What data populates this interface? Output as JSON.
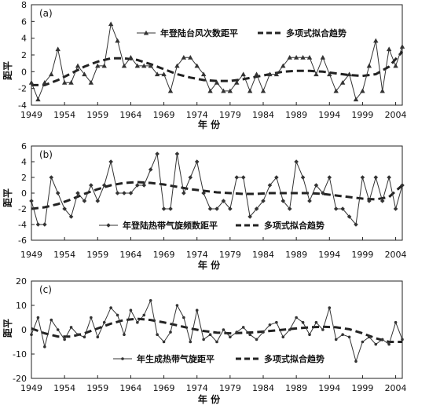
{
  "colors": {
    "series": "#333333",
    "trend": "#222222",
    "frame": "#222222"
  },
  "chart_data": [
    {
      "type": "line",
      "panel_label": "(a)",
      "title": "",
      "xlabel": "年  份",
      "ylabel": "距平",
      "xlim": [
        1949,
        2005
      ],
      "ylim": [
        -4,
        8
      ],
      "xticks": [
        1949,
        1954,
        1959,
        1964,
        1969,
        1974,
        1979,
        1984,
        1989,
        1994,
        1999,
        2004
      ],
      "yticks": [
        -4,
        -2,
        0,
        2,
        4,
        6,
        8
      ],
      "marker": "triangle",
      "legend_position": "top-right",
      "series": [
        {
          "name": "年登陆台风次数距平",
          "x": [
            1949,
            1950,
            1951,
            1952,
            1953,
            1954,
            1955,
            1956,
            1957,
            1958,
            1959,
            1960,
            1961,
            1962,
            1963,
            1964,
            1965,
            1966,
            1967,
            1968,
            1969,
            1970,
            1971,
            1972,
            1973,
            1974,
            1975,
            1976,
            1977,
            1978,
            1979,
            1980,
            1981,
            1982,
            1983,
            1984,
            1985,
            1986,
            1987,
            1988,
            1989,
            1990,
            1991,
            1992,
            1993,
            1994,
            1995,
            1996,
            1997,
            1998,
            1999,
            2000,
            2001,
            2002,
            2003,
            2004,
            2005
          ],
          "values": [
            -1.3,
            -3.3,
            -1.3,
            -0.3,
            2.7,
            -1.3,
            -1.3,
            0.7,
            -0.3,
            -1.3,
            0.7,
            0.7,
            5.7,
            3.7,
            0.7,
            1.7,
            0.7,
            0.7,
            0.7,
            -0.3,
            -0.3,
            -2.3,
            0.7,
            1.7,
            1.7,
            0.7,
            -0.3,
            -2.3,
            -1.3,
            -2.3,
            -2.3,
            -1.3,
            -0.3,
            -2.3,
            -0.3,
            -2.3,
            -0.3,
            -0.3,
            0.7,
            1.7,
            1.7,
            1.7,
            1.7,
            -0.3,
            1.7,
            -0.3,
            -2.3,
            -1.3,
            -0.3,
            -3.3,
            -2.3,
            0.7,
            3.7,
            -2.3,
            2.7,
            0.7,
            3.0
          ]
        },
        {
          "name": "多项式拟合趋势",
          "x": [
            1949,
            1951,
            1953,
            1955,
            1957,
            1959,
            1961,
            1963,
            1965,
            1967,
            1969,
            1971,
            1973,
            1975,
            1977,
            1979,
            1981,
            1983,
            1985,
            1987,
            1989,
            1991,
            1993,
            1995,
            1997,
            1999,
            2001,
            2003,
            2005
          ],
          "values": [
            -1.6,
            -1.6,
            -1.0,
            -0.2,
            0.6,
            1.2,
            1.6,
            1.6,
            1.4,
            0.9,
            0.3,
            -0.3,
            -0.7,
            -1.0,
            -1.1,
            -1.1,
            -0.9,
            -0.6,
            -0.3,
            0.0,
            0.1,
            0.1,
            0.0,
            -0.2,
            -0.4,
            -0.5,
            -0.3,
            0.6,
            2.4
          ]
        }
      ]
    },
    {
      "type": "line",
      "panel_label": "(b)",
      "title": "",
      "xlabel": "年  份",
      "ylabel": "距平",
      "xlim": [
        1949,
        2005
      ],
      "ylim": [
        -6,
        6
      ],
      "xticks": [
        1949,
        1954,
        1959,
        1964,
        1969,
        1974,
        1979,
        1984,
        1989,
        1994,
        1999,
        2004
      ],
      "yticks": [
        -6,
        -4,
        -2,
        0,
        2,
        4,
        6
      ],
      "marker": "diamond",
      "legend_position": "bottom-center",
      "series": [
        {
          "name": "年登陆热带气旋频数距平",
          "x": [
            1949,
            1950,
            1951,
            1952,
            1953,
            1954,
            1955,
            1956,
            1957,
            1958,
            1959,
            1960,
            1961,
            1962,
            1963,
            1964,
            1965,
            1966,
            1967,
            1968,
            1969,
            1970,
            1971,
            1972,
            1973,
            1974,
            1975,
            1976,
            1977,
            1978,
            1979,
            1980,
            1981,
            1982,
            1983,
            1984,
            1985,
            1986,
            1987,
            1988,
            1989,
            1990,
            1991,
            1992,
            1993,
            1994,
            1995,
            1996,
            1997,
            1998,
            1999,
            2000,
            2001,
            2002,
            2003,
            2004,
            2005
          ],
          "values": [
            -1,
            -4,
            -4,
            2,
            0,
            -2,
            -3,
            0,
            -1,
            1,
            -1,
            1,
            4,
            0,
            0,
            0,
            1,
            1,
            3,
            5,
            -2,
            -2,
            5,
            0,
            2,
            4,
            0,
            -2,
            -2,
            -1,
            -2,
            2,
            2,
            -3,
            -2,
            -1,
            1,
            2,
            -1,
            -2,
            4,
            2,
            -1,
            1,
            0,
            2,
            -2,
            -2,
            -3,
            -4,
            2,
            -1,
            2,
            -1,
            2,
            -2,
            1
          ]
        },
        {
          "name": "多项式拟合趋势",
          "x": [
            1949,
            1951,
            1953,
            1955,
            1957,
            1959,
            1961,
            1963,
            1965,
            1967,
            1969,
            1971,
            1973,
            1975,
            1977,
            1979,
            1981,
            1983,
            1985,
            1987,
            1989,
            1991,
            1993,
            1995,
            1997,
            1999,
            2001,
            2003,
            2005
          ],
          "values": [
            -2.0,
            -1.8,
            -1.4,
            -0.8,
            -0.1,
            0.5,
            1.0,
            1.3,
            1.4,
            1.3,
            1.1,
            0.8,
            0.5,
            0.3,
            0.1,
            0.0,
            -0.1,
            -0.1,
            0.0,
            0.0,
            0.0,
            0.0,
            -0.1,
            -0.3,
            -0.5,
            -0.7,
            -0.8,
            -0.5,
            1.0
          ]
        }
      ]
    },
    {
      "type": "line",
      "panel_label": "(c)",
      "title": "",
      "xlabel": "年  份",
      "ylabel": "距平",
      "xlim": [
        1949,
        2005
      ],
      "ylim": [
        -20,
        20
      ],
      "xticks": [
        1949,
        1954,
        1959,
        1964,
        1969,
        1974,
        1979,
        1984,
        1989,
        1994,
        1999,
        2004
      ],
      "yticks": [
        -20,
        -10,
        0,
        10,
        20
      ],
      "marker": "dot",
      "legend_position": "bottom-center",
      "series": [
        {
          "name": "年生成热带气旋距平",
          "x": [
            1949,
            1950,
            1951,
            1952,
            1953,
            1954,
            1955,
            1956,
            1957,
            1958,
            1959,
            1960,
            1961,
            1962,
            1963,
            1964,
            1965,
            1966,
            1967,
            1968,
            1969,
            1970,
            1971,
            1972,
            1973,
            1974,
            1975,
            1976,
            1977,
            1978,
            1979,
            1980,
            1981,
            1982,
            1983,
            1984,
            1985,
            1986,
            1987,
            1988,
            1989,
            1990,
            1991,
            1992,
            1993,
            1994,
            1995,
            1996,
            1997,
            1998,
            1999,
            2000,
            2001,
            2002,
            2003,
            2004,
            2005
          ],
          "values": [
            -2,
            5,
            -7,
            4,
            0,
            -4,
            1,
            -2,
            -3,
            5,
            -3,
            3,
            9,
            6,
            -2,
            8,
            3,
            6,
            12,
            -2,
            -5,
            -1,
            10,
            5,
            -5,
            8,
            -4,
            -2,
            -5,
            0,
            -3,
            -1,
            1,
            -2,
            -4,
            -1,
            2,
            3,
            -3,
            0,
            5,
            3,
            -2,
            3,
            0,
            9,
            -4,
            -2,
            -3,
            -13,
            -5,
            -3,
            -6,
            -4,
            -6,
            3,
            -4
          ]
        },
        {
          "name": "多项式拟合趋势",
          "x": [
            1949,
            1951,
            1953,
            1955,
            1957,
            1959,
            1961,
            1963,
            1965,
            1967,
            1969,
            1971,
            1973,
            1975,
            1977,
            1979,
            1981,
            1983,
            1985,
            1987,
            1989,
            1991,
            1993,
            1995,
            1997,
            1999,
            2001,
            2003,
            2005
          ],
          "values": [
            0.5,
            -1.5,
            -2.8,
            -2.8,
            -1.5,
            0.5,
            2.5,
            4.0,
            4.5,
            4.0,
            3.0,
            1.8,
            0.5,
            -0.5,
            -1.2,
            -1.5,
            -1.3,
            -1.0,
            -0.5,
            0.0,
            0.5,
            1.0,
            1.2,
            1.0,
            0.2,
            -1.5,
            -3.5,
            -5.0,
            -5.0
          ]
        }
      ]
    }
  ]
}
